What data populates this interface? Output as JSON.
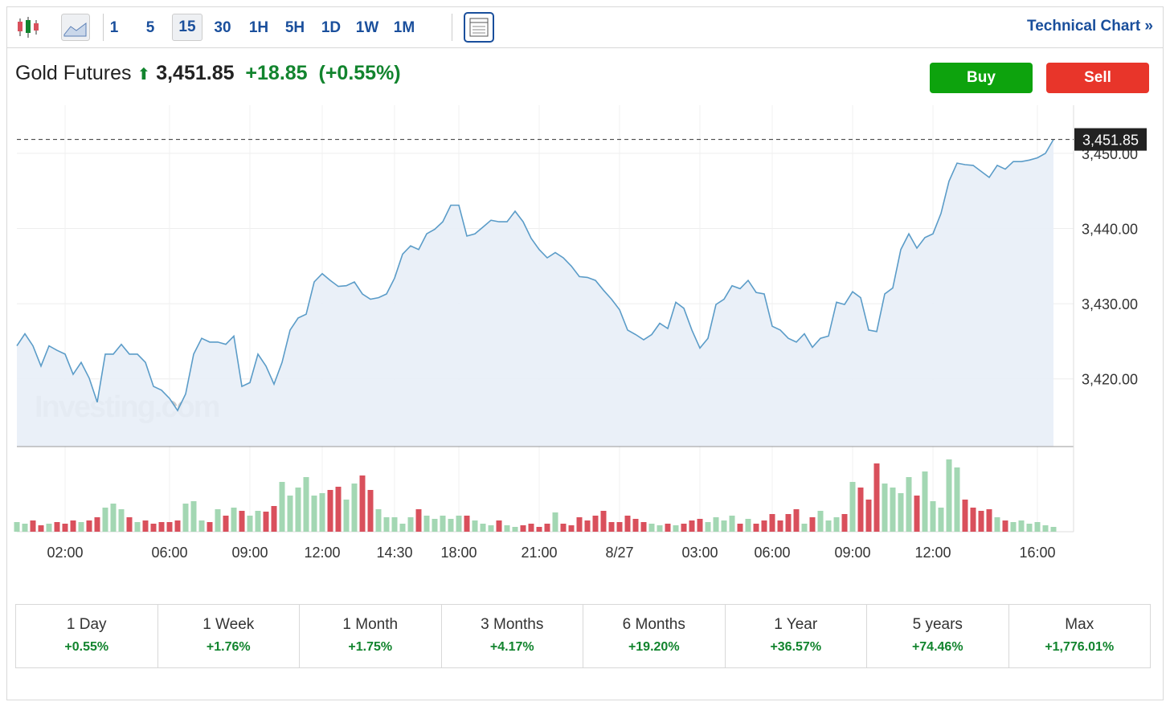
{
  "toolbar": {
    "intervals": [
      "1",
      "5",
      "15",
      "30",
      "1H",
      "5H",
      "1D",
      "1W",
      "1M"
    ],
    "selected": "15",
    "link": "Technical Chart »"
  },
  "header": {
    "name": "Gold Futures",
    "price": "3,451.85",
    "change": "+18.85",
    "change_pct": "(+0.55%)",
    "buy": "Buy",
    "sell": "Sell"
  },
  "chart_data": {
    "type": "line",
    "watermark": "Investing.com",
    "last_price_label": "3,451.85",
    "line_color": "#5b9cc8",
    "fill_color": "#e8eef7",
    "up_color": "#a3d7b3",
    "down_color": "#d9505c",
    "grid": true,
    "categories": [
      null,
      null,
      null,
      null,
      null,
      null,
      "02:00",
      null,
      null,
      null,
      null,
      null,
      null,
      null,
      null,
      null,
      null,
      null,
      null,
      "06:00",
      null,
      null,
      null,
      null,
      null,
      null,
      null,
      null,
      null,
      "09:00",
      null,
      null,
      null,
      null,
      null,
      null,
      null,
      null,
      "12:00",
      null,
      null,
      null,
      null,
      null,
      null,
      null,
      null,
      "14:30",
      null,
      null,
      null,
      null,
      null,
      null,
      null,
      "18:00",
      null,
      null,
      null,
      null,
      null,
      null,
      null,
      null,
      null,
      "21:00",
      null,
      null,
      null,
      null,
      null,
      null,
      null,
      null,
      null,
      "8/27",
      null,
      null,
      null,
      null,
      null,
      null,
      null,
      null,
      null,
      "03:00",
      null,
      null,
      null,
      null,
      null,
      null,
      null,
      null,
      "06:00",
      null,
      null,
      null,
      null,
      null,
      null,
      null,
      null,
      null,
      "09:00",
      null,
      null,
      null,
      null,
      null,
      null,
      null,
      null,
      null,
      "12:00",
      null,
      null,
      null,
      null,
      null,
      null,
      null,
      null,
      null,
      null,
      null,
      null,
      "16:00",
      null,
      null
    ],
    "values": [
      3424.4,
      3426,
      3424.4,
      3421.7,
      3424.4,
      3423.8,
      3423.3,
      3420.6,
      3422.2,
      3420.1,
      3416.9,
      3423.3,
      3423.3,
      3424.6,
      3423.3,
      3423.3,
      3422.2,
      3419,
      3418.5,
      3417.4,
      3415.8,
      3418,
      3423.3,
      3425.4,
      3424.9,
      3424.9,
      3424.6,
      3425.7,
      3419,
      3419.5,
      3423.3,
      3421.7,
      3419.3,
      3422.2,
      3426.5,
      3428.1,
      3428.6,
      3432.9,
      3434,
      3433.1,
      3432.3,
      3432.4,
      3432.9,
      3431.3,
      3430.6,
      3430.8,
      3431.3,
      3433.4,
      3436.6,
      3437.7,
      3437.2,
      3439.3,
      3439.9,
      3440.9,
      3443.1,
      3443.1,
      3439,
      3439.3,
      3440.2,
      3441.1,
      3440.9,
      3440.9,
      3442.3,
      3440.9,
      3438.7,
      3437.2,
      3436.1,
      3436.8,
      3436.1,
      3435,
      3433.6,
      3433.5,
      3433.1,
      3431.8,
      3430.6,
      3429.2,
      3426.5,
      3425.9,
      3425.2,
      3425.9,
      3427.4,
      3426.7,
      3430.2,
      3429.4,
      3426.5,
      3424.1,
      3425.4,
      3429.9,
      3430.6,
      3432.4,
      3432,
      3433.1,
      3431.5,
      3431.3,
      3427,
      3426.5,
      3425.4,
      3424.9,
      3426,
      3424.2,
      3425.4,
      3425.7,
      3430.2,
      3429.9,
      3431.6,
      3430.8,
      3426.5,
      3426.3,
      3431.3,
      3432.1,
      3437.2,
      3439.3,
      3437.4,
      3438.8,
      3439.3,
      3442,
      3446.3,
      3448.7,
      3448.5,
      3448.4,
      3447.6,
      3446.8,
      3448.4,
      3447.9,
      3448.9,
      3448.9,
      3449.1,
      3449.4,
      3450,
      3451.85
    ],
    "volumes": [
      12,
      10,
      14,
      8,
      10,
      12,
      10,
      14,
      12,
      14,
      18,
      30,
      35,
      28,
      18,
      12,
      14,
      10,
      12,
      12,
      14,
      35,
      38,
      14,
      12,
      28,
      20,
      30,
      26,
      20,
      26,
      25,
      32,
      62,
      45,
      55,
      68,
      45,
      48,
      52,
      56,
      40,
      60,
      70,
      52,
      28,
      18,
      18,
      10,
      18,
      28,
      20,
      16,
      20,
      16,
      20,
      20,
      14,
      10,
      8,
      14,
      8,
      6,
      8,
      10,
      6,
      10,
      24,
      10,
      8,
      18,
      14,
      20,
      26,
      12,
      12,
      20,
      16,
      12,
      10,
      8,
      10,
      8,
      10,
      14,
      16,
      12,
      18,
      14,
      20,
      10,
      16,
      10,
      14,
      22,
      14,
      22,
      28,
      10,
      18,
      26,
      14,
      18,
      22,
      62,
      55,
      40,
      85,
      60,
      55,
      48,
      68,
      45,
      75,
      38,
      30,
      90,
      80,
      40,
      30,
      26,
      28,
      18,
      14,
      12,
      14,
      10,
      12,
      8,
      6
    ],
    "ylim": [
      3411,
      3456.4
    ],
    "yticks": [
      {
        "value": 3420,
        "label": "3,420.00"
      },
      {
        "value": 3430,
        "label": "3,430.00"
      },
      {
        "value": 3440,
        "label": "3,440.00"
      },
      {
        "value": 3450,
        "label": "3,450.00"
      }
    ]
  },
  "performance": [
    {
      "period": "1 Day",
      "change": "+0.55%"
    },
    {
      "period": "1 Week",
      "change": "+1.76%"
    },
    {
      "period": "1 Month",
      "change": "+1.75%"
    },
    {
      "period": "3 Months",
      "change": "+4.17%"
    },
    {
      "period": "6 Months",
      "change": "+19.20%"
    },
    {
      "period": "1 Year",
      "change": "+36.57%"
    },
    {
      "period": "5 years",
      "change": "+74.46%"
    },
    {
      "period": "Max",
      "change": "+1,776.01%"
    }
  ]
}
